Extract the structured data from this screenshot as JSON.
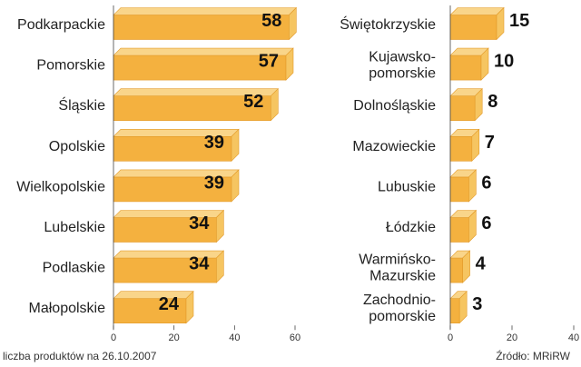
{
  "chart_data": [
    {
      "type": "bar",
      "orientation": "horizontal",
      "categories": [
        "Podkarpackie",
        "Pomorskie",
        "Śląskie",
        "Opolskie",
        "Wielkopolskie",
        "Lubelskie",
        "Podlaskie",
        "Małopolskie"
      ],
      "values": [
        58,
        57,
        52,
        39,
        39,
        34,
        34,
        24
      ],
      "xlim": [
        0,
        60
      ],
      "xticks": [
        0,
        20,
        40,
        60
      ],
      "grid": false,
      "colors": {
        "front": "#F4B13F",
        "top": "#F9D58A",
        "side": "#F6C561",
        "edge": "#E39A28"
      }
    },
    {
      "type": "bar",
      "orientation": "horizontal",
      "categories": [
        [
          "Świętokrzyskie"
        ],
        [
          "Kujawsko-",
          "pomorskie"
        ],
        [
          "Dolnośląskie"
        ],
        [
          "Mazowieckie"
        ],
        [
          "Lubuskie"
        ],
        [
          "Łódzkie"
        ],
        [
          "Warmińsko-",
          "Mazurskie"
        ],
        [
          "Zachodnio-",
          "pomorskie"
        ]
      ],
      "values": [
        15,
        10,
        8,
        7,
        6,
        6,
        4,
        3
      ],
      "xlim": [
        0,
        40
      ],
      "xticks": [
        0,
        20,
        40
      ],
      "grid": false,
      "colors": {
        "front": "#F4B13F",
        "top": "#F9D58A",
        "side": "#F6C561",
        "edge": "#E39A28"
      }
    }
  ],
  "footer": {
    "left": "liczba produktów na 26.10.2007",
    "right": "Źródło: MRiRW"
  }
}
